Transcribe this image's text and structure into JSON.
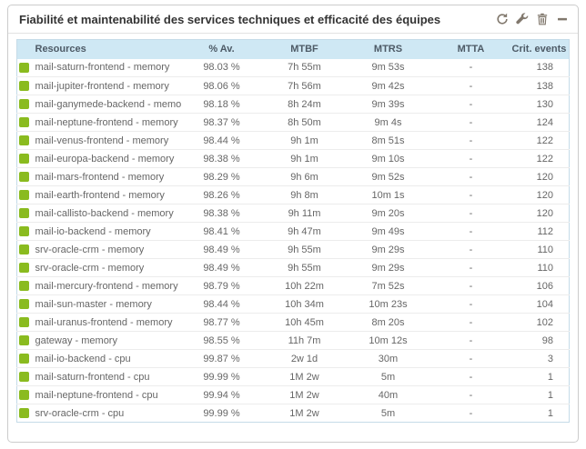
{
  "widget": {
    "title": "Fiabilité et maintenabilité des services techniques et efficacité des équipes",
    "toolbar": {
      "refresh": "refresh-icon",
      "configure": "wrench-icon",
      "delete": "trash-icon",
      "collapse": "minus-icon"
    }
  },
  "colors": {
    "status_ok": "#8abb1f",
    "header_bg": "#cfe8f4",
    "table_border": "#c5dbe8",
    "icon": "#81786d",
    "title_text": "#333333",
    "row_text": "#666666",
    "header_text": "#4d5a66"
  },
  "table": {
    "columns": [
      "Resources",
      "% Av.",
      "MTBF",
      "MTRS",
      "MTTA",
      "Crit. events"
    ],
    "rows": [
      {
        "status": "ok",
        "resource": "mail-saturn-frontend - memory",
        "availability": "98.03 %",
        "mtbf": "7h 55m",
        "mtrs": "9m 53s",
        "mtta": "-",
        "crit_events": "138"
      },
      {
        "status": "ok",
        "resource": "mail-jupiter-frontend - memory",
        "availability": "98.06 %",
        "mtbf": "7h 56m",
        "mtrs": "9m 42s",
        "mtta": "-",
        "crit_events": "138"
      },
      {
        "status": "ok",
        "resource": "mail-ganymede-backend - memory",
        "availability": "98.18 %",
        "mtbf": "8h 24m",
        "mtrs": "9m 39s",
        "mtta": "-",
        "crit_events": "130"
      },
      {
        "status": "ok",
        "resource": "mail-neptune-frontend - memory",
        "availability": "98.37 %",
        "mtbf": "8h 50m",
        "mtrs": "9m 4s",
        "mtta": "-",
        "crit_events": "124"
      },
      {
        "status": "ok",
        "resource": "mail-venus-frontend - memory",
        "availability": "98.44 %",
        "mtbf": "9h 1m",
        "mtrs": "8m 51s",
        "mtta": "-",
        "crit_events": "122"
      },
      {
        "status": "ok",
        "resource": "mail-europa-backend - memory",
        "availability": "98.38 %",
        "mtbf": "9h 1m",
        "mtrs": "9m 10s",
        "mtta": "-",
        "crit_events": "122"
      },
      {
        "status": "ok",
        "resource": "mail-mars-frontend - memory",
        "availability": "98.29 %",
        "mtbf": "9h 6m",
        "mtrs": "9m 52s",
        "mtta": "-",
        "crit_events": "120"
      },
      {
        "status": "ok",
        "resource": "mail-earth-frontend - memory",
        "availability": "98.26 %",
        "mtbf": "9h 8m",
        "mtrs": "10m 1s",
        "mtta": "-",
        "crit_events": "120"
      },
      {
        "status": "ok",
        "resource": "mail-callisto-backend - memory",
        "availability": "98.38 %",
        "mtbf": "9h 11m",
        "mtrs": "9m 20s",
        "mtta": "-",
        "crit_events": "120"
      },
      {
        "status": "ok",
        "resource": "mail-io-backend - memory",
        "availability": "98.41 %",
        "mtbf": "9h 47m",
        "mtrs": "9m 49s",
        "mtta": "-",
        "crit_events": "112"
      },
      {
        "status": "ok",
        "resource": "srv-oracle-crm - memory",
        "availability": "98.49 %",
        "mtbf": "9h 55m",
        "mtrs": "9m 29s",
        "mtta": "-",
        "crit_events": "110"
      },
      {
        "status": "ok",
        "resource": "srv-oracle-crm - memory",
        "availability": "98.49 %",
        "mtbf": "9h 55m",
        "mtrs": "9m 29s",
        "mtta": "-",
        "crit_events": "110"
      },
      {
        "status": "ok",
        "resource": "mail-mercury-frontend - memory",
        "availability": "98.79 %",
        "mtbf": "10h 22m",
        "mtrs": "7m 52s",
        "mtta": "-",
        "crit_events": "106"
      },
      {
        "status": "ok",
        "resource": "mail-sun-master - memory",
        "availability": "98.44 %",
        "mtbf": "10h 34m",
        "mtrs": "10m 23s",
        "mtta": "-",
        "crit_events": "104"
      },
      {
        "status": "ok",
        "resource": "mail-uranus-frontend - memory",
        "availability": "98.77 %",
        "mtbf": "10h 45m",
        "mtrs": "8m 20s",
        "mtta": "-",
        "crit_events": "102"
      },
      {
        "status": "ok",
        "resource": "gateway - memory",
        "availability": "98.55 %",
        "mtbf": "11h 7m",
        "mtrs": "10m 12s",
        "mtta": "-",
        "crit_events": "98"
      },
      {
        "status": "ok",
        "resource": "mail-io-backend - cpu",
        "availability": "99.87 %",
        "mtbf": "2w 1d",
        "mtrs": "30m",
        "mtta": "-",
        "crit_events": "3"
      },
      {
        "status": "ok",
        "resource": "mail-saturn-frontend - cpu",
        "availability": "99.99 %",
        "mtbf": "1M 2w",
        "mtrs": "5m",
        "mtta": "-",
        "crit_events": "1"
      },
      {
        "status": "ok",
        "resource": "mail-neptune-frontend - cpu",
        "availability": "99.94 %",
        "mtbf": "1M 2w",
        "mtrs": "40m",
        "mtta": "-",
        "crit_events": "1"
      },
      {
        "status": "ok",
        "resource": "srv-oracle-crm - cpu",
        "availability": "99.99 %",
        "mtbf": "1M 2w",
        "mtrs": "5m",
        "mtta": "-",
        "crit_events": "1"
      }
    ]
  }
}
